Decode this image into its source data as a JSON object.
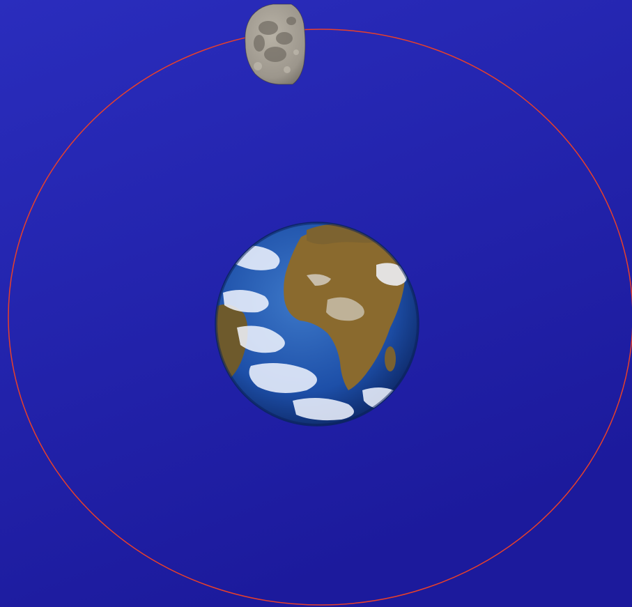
{
  "scene": {
    "background_top": "#2a2dbd",
    "background_bottom": "#1c1a9c",
    "orbit_color": "#e8402a",
    "earth": {
      "ocean_color": "#1d4fa8",
      "land_color": "#8a6a2e",
      "cloud_color": "#f2f6ff"
    },
    "moon": {
      "lit_color": "#9c968c",
      "shadow_color": "#4a4640"
    }
  }
}
